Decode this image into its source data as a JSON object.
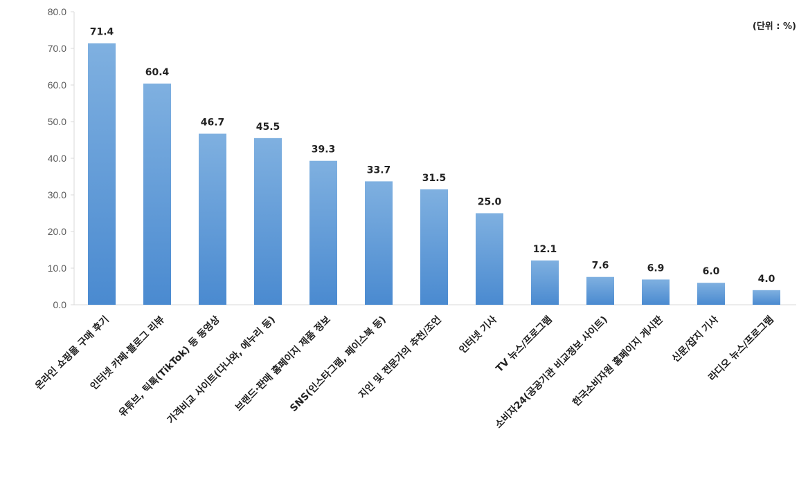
{
  "chart_data": {
    "type": "bar",
    "unit_note": "(단위 : %)",
    "categories": [
      "온라인 쇼핑몰 구매 후기",
      "인터넷 카페·블로그 리뷰",
      "유튜브, 틱톡(TikTok) 등 동영상",
      "가격비교 사이트(다나와, 에누리 등)",
      "브랜드·판매 홈페이지 제품 정보",
      "SNS(인스타그램, 페이스북 등)",
      "지인 및 전문가의 추천/조언",
      "인터넷 기사",
      "TV 뉴스/프로그램",
      "소비자24(공공기관 비교정보 사이트)",
      "한국소비자원 홈페이지 게시판",
      "신문/잡지 기사",
      "라디오 뉴스/프로그램"
    ],
    "values": [
      71.4,
      60.4,
      46.7,
      45.5,
      39.3,
      33.7,
      31.5,
      25.0,
      12.1,
      7.6,
      6.9,
      6.0,
      4.0
    ],
    "value_labels": [
      "71.4",
      "60.4",
      "46.7",
      "45.5",
      "39.3",
      "33.7",
      "31.5",
      "25.0",
      "12.1",
      "7.6",
      "6.9",
      "6.0",
      "4.0"
    ],
    "yticks": [
      "0.0",
      "10.0",
      "20.0",
      "30.0",
      "40.0",
      "50.0",
      "60.0",
      "70.0",
      "80.0"
    ],
    "ylim": [
      0,
      80
    ],
    "grid": false,
    "legend": "none",
    "bar_color_top": "#7fb0e0",
    "bar_color_bottom": "#4a8ad0",
    "axis_color": "#d9d9d9"
  }
}
